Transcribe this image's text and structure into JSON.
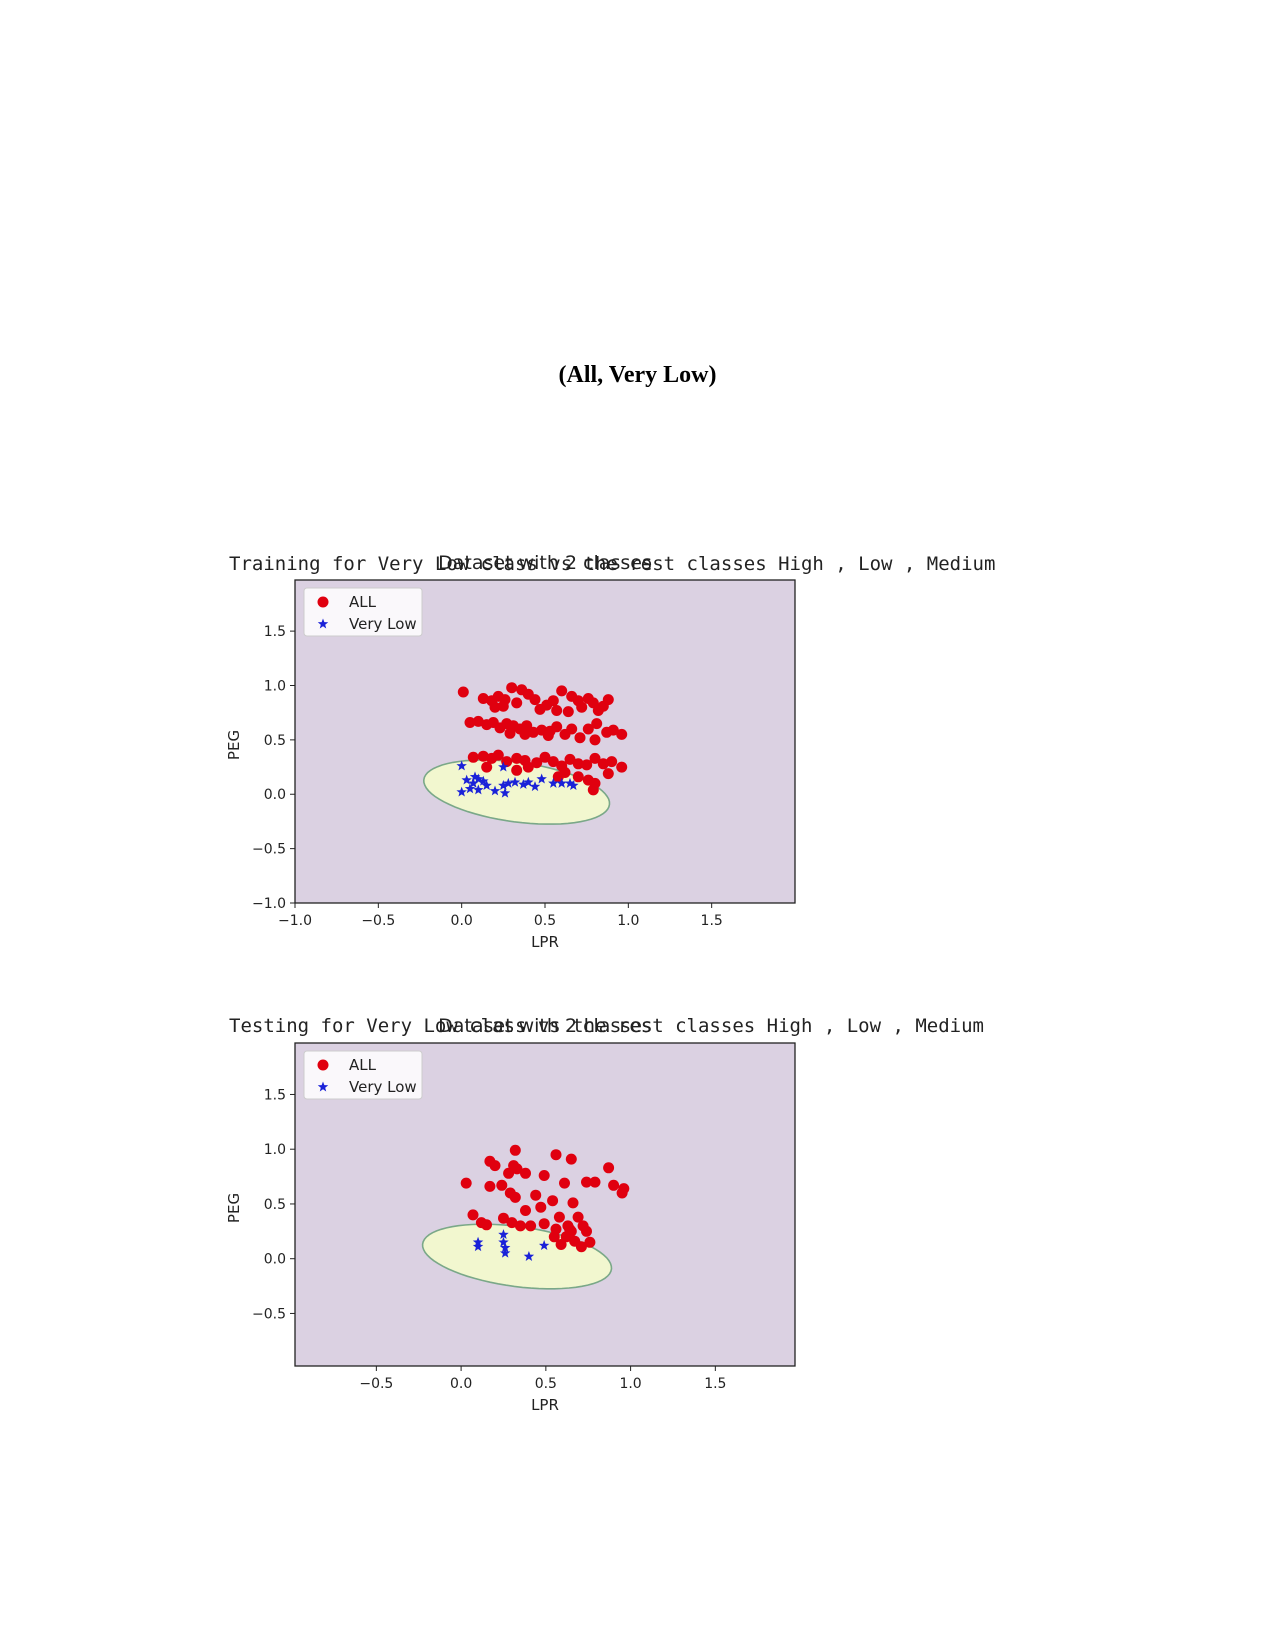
{
  "page_title": "(All, Very Low)",
  "training_caption": "Training for Very Low class vs the rest classes High , Low , Medium",
  "testing_caption": "Testing for Very Low class vs the rest classes High , Low , Medium",
  "colors": {
    "background": "#dbd1e2",
    "region": "#f2f7cf",
    "boundary": "#7aa888",
    "all": "#e0000f",
    "very_low": "#1a22d8"
  },
  "chart_data": [
    {
      "type": "scatter",
      "title": "Dataset with 2 classes",
      "xlabel": "LPR",
      "ylabel": "PEG",
      "xlim": [
        -1.0,
        2.0
      ],
      "ylim": [
        -1.0,
        1.97
      ],
      "xticks": [
        -1.0,
        -0.5,
        0.0,
        0.5,
        1.0,
        1.5
      ],
      "xtick_labels": [
        "-1.0",
        "-0.5",
        "0.0",
        "0.5",
        "1.0",
        "1.5"
      ],
      "yticks": [
        -1.0,
        -0.5,
        0.0,
        0.5,
        1.0,
        1.5
      ],
      "ytick_labels": [
        "-1.0",
        "-0.5",
        "0.0",
        "0.5",
        "1.0",
        "1.5"
      ],
      "legend": "top-left",
      "series": [
        {
          "name": "ALL",
          "marker": "circle",
          "points": [
            [
              0.01,
              0.94
            ],
            [
              0.13,
              0.88
            ],
            [
              0.18,
              0.86
            ],
            [
              0.22,
              0.9
            ],
            [
              0.26,
              0.87
            ],
            [
              0.3,
              0.98
            ],
            [
              0.36,
              0.96
            ],
            [
              0.4,
              0.92
            ],
            [
              0.44,
              0.87
            ],
            [
              0.51,
              0.82
            ],
            [
              0.55,
              0.86
            ],
            [
              0.6,
              0.95
            ],
            [
              0.66,
              0.9
            ],
            [
              0.7,
              0.86
            ],
            [
              0.76,
              0.88
            ],
            [
              0.79,
              0.84
            ],
            [
              0.85,
              0.81
            ],
            [
              0.88,
              0.87
            ],
            [
              0.2,
              0.8
            ],
            [
              0.25,
              0.81
            ],
            [
              0.33,
              0.84
            ],
            [
              0.47,
              0.78
            ],
            [
              0.57,
              0.77
            ],
            [
              0.64,
              0.76
            ],
            [
              0.72,
              0.8
            ],
            [
              0.82,
              0.77
            ],
            [
              0.05,
              0.66
            ],
            [
              0.1,
              0.67
            ],
            [
              0.15,
              0.64
            ],
            [
              0.19,
              0.66
            ],
            [
              0.23,
              0.61
            ],
            [
              0.27,
              0.65
            ],
            [
              0.31,
              0.63
            ],
            [
              0.35,
              0.6
            ],
            [
              0.39,
              0.63
            ],
            [
              0.43,
              0.57
            ],
            [
              0.48,
              0.59
            ],
            [
              0.53,
              0.58
            ],
            [
              0.57,
              0.62
            ],
            [
              0.62,
              0.55
            ],
            [
              0.66,
              0.6
            ],
            [
              0.71,
              0.52
            ],
            [
              0.76,
              0.6
            ],
            [
              0.81,
              0.65
            ],
            [
              0.87,
              0.57
            ],
            [
              0.91,
              0.59
            ],
            [
              0.96,
              0.55
            ],
            [
              0.29,
              0.56
            ],
            [
              0.38,
              0.55
            ],
            [
              0.52,
              0.54
            ],
            [
              0.8,
              0.5
            ],
            [
              0.07,
              0.34
            ],
            [
              0.13,
              0.35
            ],
            [
              0.18,
              0.33
            ],
            [
              0.22,
              0.36
            ],
            [
              0.27,
              0.3
            ],
            [
              0.33,
              0.33
            ],
            [
              0.38,
              0.31
            ],
            [
              0.45,
              0.29
            ],
            [
              0.5,
              0.34
            ],
            [
              0.55,
              0.3
            ],
            [
              0.6,
              0.26
            ],
            [
              0.65,
              0.32
            ],
            [
              0.7,
              0.28
            ],
            [
              0.75,
              0.27
            ],
            [
              0.8,
              0.33
            ],
            [
              0.85,
              0.28
            ],
            [
              0.9,
              0.3
            ],
            [
              0.96,
              0.25
            ],
            [
              0.62,
              0.2
            ],
            [
              0.7,
              0.16
            ],
            [
              0.76,
              0.13
            ],
            [
              0.8,
              0.1
            ],
            [
              0.79,
              0.04
            ],
            [
              0.4,
              0.25
            ],
            [
              0.15,
              0.25
            ],
            [
              0.33,
              0.22
            ],
            [
              0.58,
              0.16
            ],
            [
              0.88,
              0.19
            ]
          ]
        },
        {
          "name": "Very Low",
          "marker": "star",
          "points": [
            [
              0.0,
              0.26
            ],
            [
              0.0,
              0.02
            ],
            [
              0.03,
              0.13
            ],
            [
              0.05,
              0.05
            ],
            [
              0.07,
              0.1
            ],
            [
              0.08,
              0.16
            ],
            [
              0.1,
              0.14
            ],
            [
              0.1,
              0.04
            ],
            [
              0.13,
              0.12
            ],
            [
              0.15,
              0.08
            ],
            [
              0.2,
              0.03
            ],
            [
              0.25,
              0.08
            ],
            [
              0.25,
              0.25
            ],
            [
              0.26,
              0.01
            ],
            [
              0.28,
              0.1
            ],
            [
              0.32,
              0.11
            ],
            [
              0.37,
              0.09
            ],
            [
              0.4,
              0.11
            ],
            [
              0.44,
              0.07
            ],
            [
              0.48,
              0.14
            ],
            [
              0.55,
              0.1
            ],
            [
              0.6,
              0.1
            ],
            [
              0.65,
              0.1
            ],
            [
              0.67,
              0.08
            ]
          ]
        }
      ]
    },
    {
      "type": "scatter",
      "title": "Dataset with 2 classes",
      "xlabel": "LPR",
      "ylabel": "PEG",
      "xlim": [
        -0.98,
        1.97
      ],
      "ylim": [
        -0.98,
        1.97
      ],
      "xticks": [
        -0.5,
        0.0,
        0.5,
        1.0,
        1.5
      ],
      "xtick_labels": [
        "-0.5",
        "0.0",
        "0.5",
        "1.0",
        "1.5"
      ],
      "yticks": [
        -0.5,
        0.0,
        0.5,
        1.0,
        1.5
      ],
      "ytick_labels": [
        "-0.5",
        "0.0",
        "0.5",
        "1.0",
        "1.5"
      ],
      "legend": "top-left",
      "series": [
        {
          "name": "ALL",
          "marker": "circle",
          "points": [
            [
              0.32,
              0.99
            ],
            [
              0.56,
              0.95
            ],
            [
              0.65,
              0.91
            ],
            [
              0.17,
              0.89
            ],
            [
              0.2,
              0.85
            ],
            [
              0.31,
              0.85
            ],
            [
              0.33,
              0.82
            ],
            [
              0.87,
              0.83
            ],
            [
              0.28,
              0.78
            ],
            [
              0.38,
              0.78
            ],
            [
              0.49,
              0.76
            ],
            [
              0.03,
              0.69
            ],
            [
              0.17,
              0.66
            ],
            [
              0.24,
              0.67
            ],
            [
              0.61,
              0.69
            ],
            [
              0.74,
              0.7
            ],
            [
              0.79,
              0.7
            ],
            [
              0.9,
              0.67
            ],
            [
              0.96,
              0.64
            ],
            [
              0.95,
              0.6
            ],
            [
              0.29,
              0.6
            ],
            [
              0.32,
              0.56
            ],
            [
              0.44,
              0.58
            ],
            [
              0.54,
              0.53
            ],
            [
              0.47,
              0.47
            ],
            [
              0.66,
              0.51
            ],
            [
              0.07,
              0.4
            ],
            [
              0.12,
              0.33
            ],
            [
              0.15,
              0.31
            ],
            [
              0.25,
              0.37
            ],
            [
              0.3,
              0.33
            ],
            [
              0.35,
              0.3
            ],
            [
              0.41,
              0.3
            ],
            [
              0.49,
              0.32
            ],
            [
              0.58,
              0.38
            ],
            [
              0.63,
              0.3
            ],
            [
              0.69,
              0.38
            ],
            [
              0.72,
              0.3
            ],
            [
              0.74,
              0.25
            ],
            [
              0.56,
              0.27
            ],
            [
              0.62,
              0.2
            ],
            [
              0.67,
              0.16
            ],
            [
              0.55,
              0.2
            ],
            [
              0.65,
              0.25
            ],
            [
              0.76,
              0.15
            ],
            [
              0.71,
              0.11
            ],
            [
              0.59,
              0.13
            ],
            [
              0.64,
              0.27
            ],
            [
              0.38,
              0.44
            ]
          ]
        },
        {
          "name": "Very Low",
          "marker": "star",
          "points": [
            [
              0.1,
              0.15
            ],
            [
              0.1,
              0.11
            ],
            [
              0.25,
              0.22
            ],
            [
              0.25,
              0.15
            ],
            [
              0.26,
              0.1
            ],
            [
              0.26,
              0.05
            ],
            [
              0.4,
              0.02
            ],
            [
              0.49,
              0.12
            ]
          ]
        }
      ]
    }
  ]
}
